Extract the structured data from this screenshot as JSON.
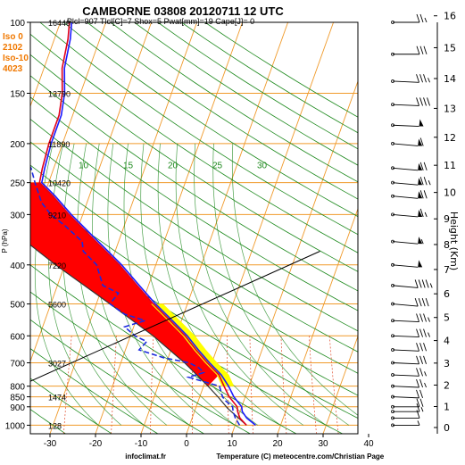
{
  "chart_data": {
    "type": "skew-t",
    "title": "CAMBORNE 03808 20120711 12 UTC",
    "subtitle": "Plcl=907 Tlcl[C]=7 Shox=5 Pwat[mm]=19 Cape[J]= 0",
    "xlabel": "Temperature (C)",
    "ylabel": "P (hPa)",
    "y2label": "Height (Km)",
    "credit_left": "infoclimat.fr",
    "credit_right": "meteocentre.com/Christian Page",
    "x_ticks": [
      "-30",
      "-20",
      "-10",
      "0",
      "10",
      "20",
      "30",
      "40"
    ],
    "p_ticks": [
      "100",
      "150",
      "200",
      "250",
      "300",
      "400",
      "500",
      "600",
      "700",
      "800",
      "850",
      "900",
      "1000"
    ],
    "height_ticks": [
      "0",
      "1",
      "2",
      "3",
      "4",
      "5",
      "6",
      "7",
      "8",
      "9",
      "10",
      "11",
      "12",
      "13",
      "14",
      "15",
      "16"
    ],
    "geopotential_labels": [
      {
        "p": 100,
        "text": "16440"
      },
      {
        "p": 150,
        "text": "13790"
      },
      {
        "p": 200,
        "text": "11890"
      },
      {
        "p": 250,
        "text": "10420"
      },
      {
        "p": 300,
        "text": "9210"
      },
      {
        "p": 400,
        "text": "7220"
      },
      {
        "p": 500,
        "text": "5600"
      },
      {
        "p": 700,
        "text": "3027"
      },
      {
        "p": 850,
        "text": "1474"
      },
      {
        "p": 1000,
        "text": "128"
      }
    ],
    "iso_levels": [
      {
        "label": "Iso 0",
        "value": "2102"
      },
      {
        "label": "Iso-10",
        "value": "4023"
      }
    ],
    "mixing_ratio_labels": [
      "10",
      "15",
      "20",
      "25",
      "30"
    ],
    "temperature_profile": [
      {
        "p": 1000,
        "t": 12.5
      },
      {
        "p": 960,
        "t": 10.5
      },
      {
        "p": 925,
        "t": 9.5
      },
      {
        "p": 900,
        "t": 9.0
      },
      {
        "p": 850,
        "t": 6.5
      },
      {
        "p": 800,
        "t": 4.5
      },
      {
        "p": 750,
        "t": 2.5
      },
      {
        "p": 700,
        "t": -1.0
      },
      {
        "p": 650,
        "t": -4.5
      },
      {
        "p": 600,
        "t": -8.0
      },
      {
        "p": 550,
        "t": -12.5
      },
      {
        "p": 500,
        "t": -17.5
      },
      {
        "p": 450,
        "t": -22.5
      },
      {
        "p": 400,
        "t": -28.0
      },
      {
        "p": 350,
        "t": -35.0
      },
      {
        "p": 300,
        "t": -43.0
      },
      {
        "p": 270,
        "t": -48.0
      },
      {
        "p": 250,
        "t": -52.0
      },
      {
        "p": 230,
        "t": -52.5
      },
      {
        "p": 200,
        "t": -53.0
      },
      {
        "p": 170,
        "t": -53.0
      },
      {
        "p": 150,
        "t": -54.0
      },
      {
        "p": 130,
        "t": -56.0
      },
      {
        "p": 110,
        "t": -57.0
      },
      {
        "p": 100,
        "t": -58.0
      }
    ],
    "virtual_temperature_profile": [
      {
        "p": 1000,
        "t": 14.5
      },
      {
        "p": 960,
        "t": 12.0
      },
      {
        "p": 925,
        "t": 10.5
      },
      {
        "p": 900,
        "t": 10.0
      },
      {
        "p": 850,
        "t": 7.5
      },
      {
        "p": 800,
        "t": 5.5
      },
      {
        "p": 750,
        "t": 3.0
      },
      {
        "p": 700,
        "t": -0.5
      },
      {
        "p": 650,
        "t": -4.0
      },
      {
        "p": 600,
        "t": -7.5
      },
      {
        "p": 550,
        "t": -12.0
      },
      {
        "p": 500,
        "t": -17.0
      },
      {
        "p": 450,
        "t": -22.0
      },
      {
        "p": 400,
        "t": -27.5
      },
      {
        "p": 350,
        "t": -34.5
      },
      {
        "p": 300,
        "t": -42.5
      },
      {
        "p": 270,
        "t": -47.5
      },
      {
        "p": 250,
        "t": -51.5
      },
      {
        "p": 230,
        "t": -52.0
      },
      {
        "p": 200,
        "t": -52.5
      },
      {
        "p": 170,
        "t": -52.5
      },
      {
        "p": 150,
        "t": -53.5
      },
      {
        "p": 130,
        "t": -55.5
      },
      {
        "p": 110,
        "t": -56.5
      },
      {
        "p": 100,
        "t": -57.5
      }
    ],
    "dewpoint_profile": [
      {
        "p": 1000,
        "t": 11.0
      },
      {
        "p": 960,
        "t": 9.5
      },
      {
        "p": 925,
        "t": 8.5
      },
      {
        "p": 900,
        "t": 8.0
      },
      {
        "p": 870,
        "t": 6.0
      },
      {
        "p": 850,
        "t": 5.0
      },
      {
        "p": 800,
        "t": 3.5
      },
      {
        "p": 760,
        "t": -4.0
      },
      {
        "p": 740,
        "t": -1.0
      },
      {
        "p": 720,
        "t": -2.5
      },
      {
        "p": 700,
        "t": -5.0
      },
      {
        "p": 680,
        "t": -11.0
      },
      {
        "p": 650,
        "t": -17.0
      },
      {
        "p": 620,
        "t": -16.0
      },
      {
        "p": 600,
        "t": -19.0
      },
      {
        "p": 570,
        "t": -22.0
      },
      {
        "p": 550,
        "t": -18.0
      },
      {
        "p": 530,
        "t": -23.0
      },
      {
        "p": 500,
        "t": -27.0
      },
      {
        "p": 470,
        "t": -26.0
      },
      {
        "p": 450,
        "t": -30.0
      },
      {
        "p": 400,
        "t": -33.0
      },
      {
        "p": 370,
        "t": -37.0
      },
      {
        "p": 350,
        "t": -38.0
      },
      {
        "p": 320,
        "t": -43.0
      },
      {
        "p": 300,
        "t": -47.0
      },
      {
        "p": 280,
        "t": -50.0
      },
      {
        "p": 250,
        "t": -53.0
      },
      {
        "p": 230,
        "t": -55.0
      },
      {
        "p": 200,
        "t": -60.0
      },
      {
        "p": 180,
        "t": -68.0
      },
      {
        "p": 160,
        "t": -70.0
      },
      {
        "p": 150,
        "t": -72.0
      },
      {
        "p": 130,
        "t": -76.0
      },
      {
        "p": 110,
        "t": -74.0
      },
      {
        "p": 100,
        "t": -72.0
      }
    ],
    "parcel_profile": [
      {
        "p": 1000,
        "t": 12.5
      },
      {
        "p": 907,
        "t": 7.0
      },
      {
        "p": 850,
        "t": 4.0
      },
      {
        "p": 800,
        "t": 1.0
      },
      {
        "p": 700,
        "t": -6.0
      },
      {
        "p": 600,
        "t": -15.0
      },
      {
        "p": 500,
        "t": -27.0
      },
      {
        "p": 400,
        "t": -42.0
      },
      {
        "p": 300,
        "t": -60.0
      },
      {
        "p": 250,
        "t": -70.0
      }
    ],
    "cin_area": [
      {
        "p": 250,
        "t": -70.0
      },
      {
        "p": 250,
        "t": -52.0
      },
      {
        "p": 270,
        "t": -48.0
      },
      {
        "p": 300,
        "t": -43.0
      },
      {
        "p": 350,
        "t": -35.0
      },
      {
        "p": 400,
        "t": -28.0
      },
      {
        "p": 450,
        "t": -22.5
      },
      {
        "p": 500,
        "t": -17.5
      },
      {
        "p": 550,
        "t": -12.5
      },
      {
        "p": 600,
        "t": -8.0
      },
      {
        "p": 650,
        "t": -4.5
      },
      {
        "p": 700,
        "t": -1.0
      },
      {
        "p": 750,
        "t": 2.5
      },
      {
        "p": 800,
        "t": 1.0
      },
      {
        "p": 700,
        "t": -6.0
      },
      {
        "p": 600,
        "t": -15.0
      },
      {
        "p": 500,
        "t": -27.0
      },
      {
        "p": 400,
        "t": -42.0
      },
      {
        "p": 300,
        "t": -60.0
      }
    ],
    "wind_barbs": [
      {
        "p": 1000,
        "spd": 5,
        "dir": 270
      },
      {
        "p": 960,
        "spd": 10,
        "dir": 270
      },
      {
        "p": 925,
        "spd": 15,
        "dir": 270
      },
      {
        "p": 900,
        "spd": 20,
        "dir": 270
      },
      {
        "p": 850,
        "spd": 20,
        "dir": 280
      },
      {
        "p": 800,
        "spd": 25,
        "dir": 280
      },
      {
        "p": 750,
        "spd": 25,
        "dir": 280
      },
      {
        "p": 700,
        "spd": 30,
        "dir": 280
      },
      {
        "p": 650,
        "spd": 30,
        "dir": 280
      },
      {
        "p": 600,
        "spd": 35,
        "dir": 280
      },
      {
        "p": 550,
        "spd": 35,
        "dir": 280
      },
      {
        "p": 500,
        "spd": 40,
        "dir": 290
      },
      {
        "p": 450,
        "spd": 45,
        "dir": 290
      },
      {
        "p": 400,
        "spd": 50,
        "dir": 290
      },
      {
        "p": 350,
        "spd": 55,
        "dir": 290
      },
      {
        "p": 300,
        "spd": 65,
        "dir": 290
      },
      {
        "p": 270,
        "spd": 70,
        "dir": 290
      },
      {
        "p": 250,
        "spd": 75,
        "dir": 290
      },
      {
        "p": 230,
        "spd": 70,
        "dir": 290
      },
      {
        "p": 200,
        "spd": 60,
        "dir": 290
      },
      {
        "p": 180,
        "spd": 50,
        "dir": 280
      },
      {
        "p": 160,
        "spd": 40,
        "dir": 280
      },
      {
        "p": 140,
        "spd": 35,
        "dir": 280
      },
      {
        "p": 120,
        "spd": 30,
        "dir": 270
      },
      {
        "p": 100,
        "spd": 25,
        "dir": 270
      }
    ],
    "colors": {
      "temperature": "#e0001a",
      "virtual_temperature": "#1a1aff",
      "dewpoint": "#1a2adf",
      "parcel": "#333333",
      "cin": "#ff0000",
      "cape": "#ffff00",
      "dry_adiabat": "#f09a2a",
      "moist_adiabat": "#1e8a1e",
      "isotherm_label": "#f09a2a",
      "iso_text": "#f07800"
    },
    "grid": true
  }
}
